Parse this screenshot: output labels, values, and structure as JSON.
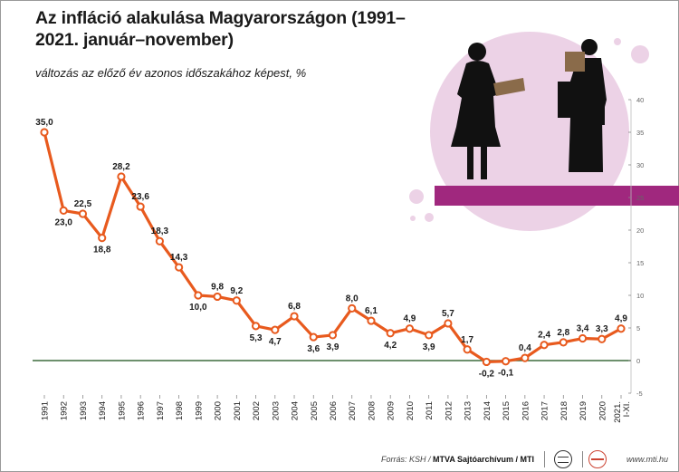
{
  "title": "Az infláció alakulása Magyarországon (1991–2021. január–november)",
  "subtitle": "változás az előző év azonos időszakához képest, %",
  "footer": {
    "source_prefix": "Forrás: KSH / ",
    "source_bold": "MTVA Sajtóarchívum / MTI",
    "site": "www.mti.hu"
  },
  "colors": {
    "line": "#e85a1e",
    "marker_fill": "#ffffff",
    "zero_line": "#3d6b3d",
    "accent_bar": "#a0287e",
    "circle": "#ecd2e6"
  },
  "chart_data": {
    "type": "line",
    "categories": [
      "1991",
      "1992",
      "1993",
      "1994",
      "1995",
      "1996",
      "1997",
      "1998",
      "1999",
      "2000",
      "2001",
      "2002",
      "2003",
      "2004",
      "2005",
      "2006",
      "2007",
      "2008",
      "2009",
      "2010",
      "2011",
      "2012",
      "2013",
      "2014",
      "2015",
      "2016",
      "2017",
      "2018",
      "2019",
      "2020",
      "2021. I-XI."
    ],
    "values": [
      35.0,
      23.0,
      22.5,
      18.8,
      28.2,
      23.6,
      18.3,
      14.3,
      10.0,
      9.8,
      9.2,
      5.3,
      4.7,
      6.8,
      3.6,
      3.9,
      8.0,
      6.1,
      4.2,
      4.9,
      3.9,
      5.7,
      1.7,
      -0.2,
      -0.1,
      0.4,
      2.4,
      2.8,
      3.4,
      3.3,
      4.9
    ],
    "labels": [
      "35,0",
      "23,0",
      "22,5",
      "18,8",
      "28,2",
      "23,6",
      "18,3",
      "14,3",
      "10,0",
      "9,8",
      "9,2",
      "5,3",
      "4,7",
      "6,8",
      "3,6",
      "3,9",
      "8,0",
      "6,1",
      "4,2",
      "4,9",
      "3,9",
      "5,7",
      "1,7",
      "-0,2",
      "-0,1",
      "0,4",
      "2,4",
      "2,8",
      "3,4",
      "3,3",
      "4,9"
    ],
    "label_positions": [
      "above",
      "below",
      "above",
      "below",
      "above",
      "above",
      "above",
      "above",
      "below",
      "above",
      "above",
      "below",
      "below",
      "above",
      "below",
      "below",
      "above",
      "above",
      "below",
      "above",
      "below",
      "above",
      "above",
      "below",
      "below",
      "above",
      "above",
      "above",
      "above",
      "above",
      "above"
    ],
    "yticks": [
      -5,
      0,
      5,
      10,
      15,
      20,
      25,
      30,
      35,
      40
    ],
    "ylim": [
      -5,
      40
    ],
    "grid": false
  }
}
